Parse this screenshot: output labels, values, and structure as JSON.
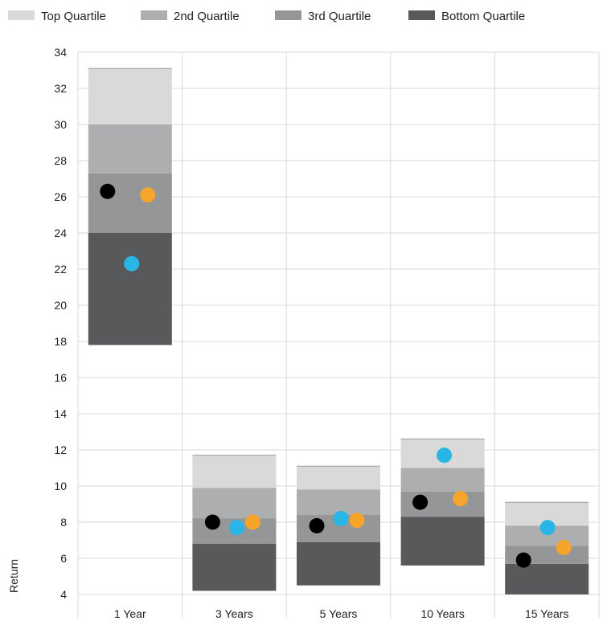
{
  "chart_data": {
    "type": "bar",
    "stacked": "floating",
    "categories": [
      "1 Year",
      "3 Years",
      "5 Years",
      "10 Years",
      "15 Years"
    ],
    "ylabel": "Return",
    "ylim": [
      4,
      34
    ],
    "yticks": [
      4,
      6,
      8,
      10,
      12,
      14,
      16,
      18,
      20,
      22,
      24,
      26,
      28,
      30,
      32,
      34
    ],
    "grid": true,
    "legend_position": "top",
    "series": [
      {
        "name": "Bottom Quartile",
        "color": "#58595b",
        "low": [
          17.8,
          4.2,
          4.5,
          5.6,
          4.0
        ],
        "high": [
          24.0,
          6.8,
          6.9,
          8.3,
          5.7
        ]
      },
      {
        "name": "3rd Quartile",
        "color": "#959697",
        "low": [
          24.0,
          6.8,
          6.9,
          8.3,
          5.7
        ],
        "high": [
          27.3,
          8.2,
          8.4,
          9.7,
          6.7
        ]
      },
      {
        "name": "2nd Quartile",
        "color": "#adaeaf",
        "low": [
          27.3,
          8.2,
          8.4,
          9.7,
          6.7
        ],
        "high": [
          30.0,
          9.9,
          9.8,
          11.0,
          7.8
        ]
      },
      {
        "name": "Top Quartile",
        "color": "#d9d9da",
        "low": [
          30.0,
          9.9,
          9.8,
          11.0,
          7.8
        ],
        "high": [
          33.1,
          11.7,
          11.1,
          12.6,
          9.1
        ]
      }
    ],
    "legend_order": [
      "Top Quartile",
      "2nd Quartile",
      "3rd Quartile",
      "Bottom Quartile"
    ],
    "points": [
      {
        "color": "#000000",
        "values": [
          26.3,
          8.0,
          7.8,
          9.1,
          5.9
        ]
      },
      {
        "color": "#29b6e6",
        "values": [
          22.3,
          7.7,
          8.2,
          11.7,
          7.7
        ]
      },
      {
        "color": "#f7a42c",
        "values": [
          26.1,
          8.0,
          8.1,
          9.3,
          6.6
        ]
      }
    ]
  }
}
